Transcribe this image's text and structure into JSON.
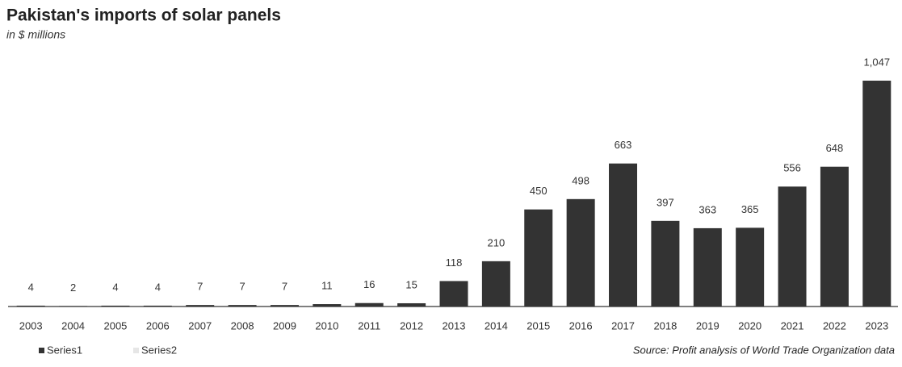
{
  "chart_data": {
    "type": "bar",
    "title": "Pakistan's imports of solar panels",
    "subtitle": "in $ millions",
    "source": "Source: Profit analysis of World Trade Organization data",
    "categories": [
      "2003",
      "2004",
      "2005",
      "2006",
      "2007",
      "2008",
      "2009",
      "2010",
      "2011",
      "2012",
      "2013",
      "2014",
      "2015",
      "2016",
      "2017",
      "2018",
      "2019",
      "2020",
      "2021",
      "2022",
      "2023"
    ],
    "series": [
      {
        "name": "Series1",
        "color": "#333333",
        "values": [
          4,
          2,
          4,
          4,
          7,
          7,
          7,
          11,
          16,
          15,
          118,
          210,
          450,
          498,
          663,
          397,
          363,
          365,
          556,
          648,
          1047
        ],
        "value_labels": [
          "4",
          "2",
          "4",
          "4",
          "7",
          "7",
          "7",
          "11",
          "16",
          "15",
          "118",
          "210",
          "450",
          "498",
          "663",
          "397",
          "363",
          "365",
          "556",
          "648",
          "1,047"
        ]
      },
      {
        "name": "Series2",
        "color": "#e6e6e6"
      }
    ],
    "legend": "bottom-left"
  }
}
